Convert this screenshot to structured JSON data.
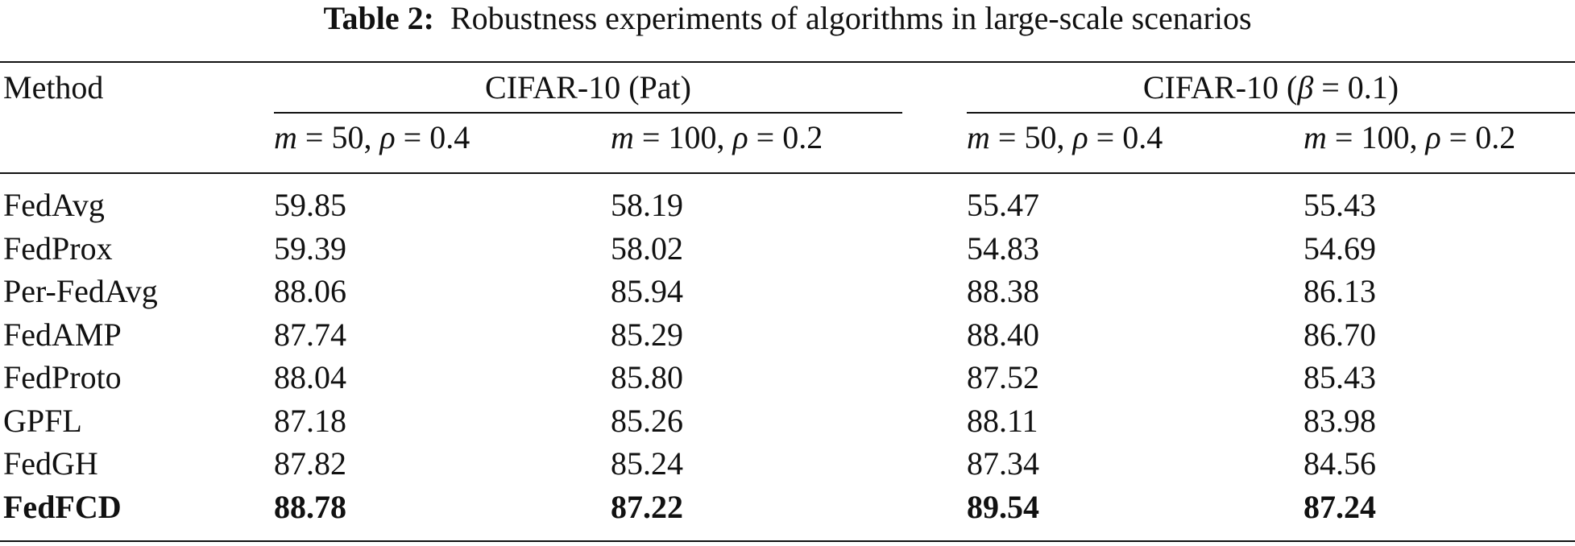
{
  "caption": {
    "label": "Table 2:",
    "text": "Robustness experiments of algorithms in large-scale scenarios"
  },
  "header": {
    "method": "Method",
    "groups": [
      {
        "name": "CIFAR-10 (Pat)",
        "pre": "CIFAR-10 (Pat)",
        "sym": "",
        "post": ""
      },
      {
        "name": "CIFAR-10 (β = 0.1)",
        "pre": "CIFAR-10 (",
        "sym": "β",
        "post": " = 0.1)"
      }
    ],
    "subcols": [
      {
        "m_sym": "m",
        "m_val": " = 50, ",
        "rho_sym": "ρ",
        "rho_val": " = 0.4"
      },
      {
        "m_sym": "m",
        "m_val": " = 100, ",
        "rho_sym": "ρ",
        "rho_val": " = 0.2"
      },
      {
        "m_sym": "m",
        "m_val": " = 50, ",
        "rho_sym": "ρ",
        "rho_val": " = 0.4"
      },
      {
        "m_sym": "m",
        "m_val": " = 100, ",
        "rho_sym": "ρ",
        "rho_val": " = 0.2"
      }
    ]
  },
  "rows": [
    {
      "method": "FedAvg",
      "values": [
        "59.85",
        "58.19",
        "55.47",
        "55.43"
      ]
    },
    {
      "method": "FedProx",
      "values": [
        "59.39",
        "58.02",
        "54.83",
        "54.69"
      ]
    },
    {
      "method": "Per-FedAvg",
      "values": [
        "88.06",
        "85.94",
        "88.38",
        "86.13"
      ]
    },
    {
      "method": "FedAMP",
      "values": [
        "87.74",
        "85.29",
        "88.40",
        "86.70"
      ]
    },
    {
      "method": "FedProto",
      "values": [
        "88.04",
        "85.80",
        "87.52",
        "85.43"
      ]
    },
    {
      "method": "GPFL",
      "values": [
        "87.18",
        "85.26",
        "88.11",
        "83.98"
      ]
    },
    {
      "method": "FedGH",
      "values": [
        "87.82",
        "85.24",
        "87.34",
        "84.56"
      ]
    },
    {
      "method": "FedFCD",
      "values": [
        "88.78",
        "87.22",
        "89.54",
        "87.24"
      ],
      "bold": true
    }
  ]
}
